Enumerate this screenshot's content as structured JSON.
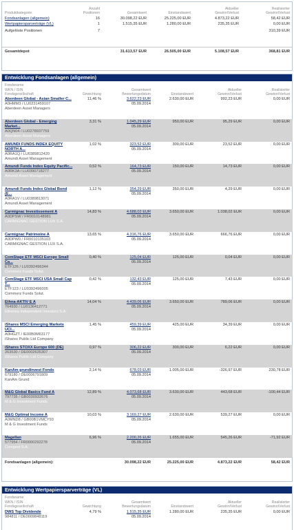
{
  "overview": {
    "headers": [
      "Produktkategorie",
      "Anzahl Positionen",
      "Gesamtwert",
      "Einstandswert",
      "Aktueller Gewinn/Verlust",
      "Realisierter Gewinn/Verlust"
    ],
    "headers_split": [
      [
        "",
        "Produktkategorie"
      ],
      [
        "Anzahl",
        "Positionen"
      ],
      [
        "",
        "Gesamtwert"
      ],
      [
        "",
        "Einstandswert"
      ],
      [
        "Aktueller",
        "Gewinn/Verlust"
      ],
      [
        "Realisierter",
        "Gewinn/Verlust"
      ]
    ],
    "rows": [
      {
        "name": "Fondsanlagen (allgemein)",
        "link": true,
        "count": "16",
        "total": "30.098,22 EUR",
        "cost": "25.225,00 EUR",
        "gain": "4.873,22 EUR",
        "realized": "58,42 EUR"
      },
      {
        "name": "Wertpapiersparverträge (VL)",
        "link": true,
        "count": "1",
        "total": "1.515,35 EUR",
        "cost": "1.280,00 EUR",
        "gain": "235,35 EUR",
        "realized": "0,00 EUR"
      },
      {
        "name": "Aufgelöste Positionen",
        "link": false,
        "count": "7",
        "total": "",
        "cost": "",
        "gain": "",
        "realized": "310,39 EUR"
      }
    ],
    "total": {
      "label": "Gesamtdepot",
      "total": "31.613,57 EUR",
      "cost": "26.505,00 EUR",
      "gain": "5.108,57 EUR",
      "realized": "368,81 EUR"
    }
  },
  "funds": {
    "title": "Entwicklung Fondsanlagen (allgemein)",
    "headers": {
      "name1": "Fondsname",
      "name2": "WKN / ISIN",
      "name3": "Fondsgesellschaft",
      "weight": "Gewichtung",
      "total1": "Gesamtwert",
      "total2": "Bewertungsdatum",
      "cost": "Einstandswert",
      "gain1": "Aktueller",
      "gain2": "Gewinn/Verlust",
      "real1": "Realisierter",
      "real2": "Gewinn/Verlust"
    },
    "rows": [
      {
        "name": "Aberdeen Global - Asian Smaller C...",
        "name2": "",
        "id": "A0HMM3 / LU0231459107",
        "mgr": "Aberdeen Asset Managers",
        "weight": "11,46 %",
        "total": "3.622,23 EUR",
        "date": "05.09.2014",
        "cost": "2.630,00 EUR",
        "gain": "992,23 EUR",
        "realized": "0,00 EUR",
        "gray": false
      },
      {
        "name": "Aberdeen Global - Emerging",
        "name2": "Market...",
        "id": "A0QN04 / LU0278937759",
        "mgr": "Aberdeen Asset Managers",
        "weight": "3,31 %",
        "total": "1.045,29 EUR",
        "date": "05.09.2014",
        "cost": "950,00 EUR",
        "gain": "95,29 EUR",
        "realized": "0,00 EUR",
        "gray": true
      },
      {
        "name": "AMUNDI FUNDS INDEX EQUITY",
        "name2": "NORTH A...",
        "id": "A0RA1Q / LU0389812420",
        "mgr": "Amundi Asset Management",
        "weight": "1,02 %",
        "total": "323,52 EUR",
        "date": "05.09.2014",
        "cost": "300,00 EUR",
        "gain": "23,52 EUR",
        "realized": "0,00 EUR",
        "gray": false
      },
      {
        "name": "Amundi Funds Index Equity Pacific...",
        "name2": "",
        "id": "A0RK3A / LU0390718277",
        "mgr": "Amundi Asset Management",
        "weight": "0,52 %",
        "total": "164,73 EUR",
        "date": "05.09.2014",
        "cost": "150,00 EUR",
        "gain": "14,73 EUR",
        "realized": "0,00 EUR",
        "gray": true
      },
      {
        "name": "Amundi Funds Index Global Bond",
        "name2": "(E...",
        "id": "A0RA1V / LU0389813071",
        "mgr": "Amundi Asset Management",
        "weight": "1,12 %",
        "total": "354,29 EUR",
        "date": "05.09.2014",
        "cost": "350,00 EUR",
        "gain": "4,29 EUR",
        "realized": "0,00 EUR",
        "gray": false
      },
      {
        "name": "Carmignac Investissement A",
        "name2": "",
        "id": "A0DPSW / FR0010148981",
        "mgr": "CARMIGNAC GESTION LUX S.A.",
        "weight": "14,83 %",
        "total": "4.688,02 EUR",
        "date": "05.09.2014",
        "cost": "3.650,00 EUR",
        "gain": "1.038,02 EUR",
        "realized": "0,00 EUR",
        "gray": true
      },
      {
        "name": "Carmignac Patrimoine A",
        "name2": "",
        "id": "A0DPW0 / FR0010135103",
        "mgr": "CARMIGNAC GESTION LUX S.A.",
        "weight": "13,65 %",
        "total": "4.316,76 EUR",
        "date": "05.09.2014",
        "cost": "3.650,00 EUR",
        "gain": "666,76 EUR",
        "realized": "0,00 EUR",
        "gray": false
      },
      {
        "name": "ComStage ETF MSCI Europe Small",
        "name2": "Ca...",
        "id": "ETF126 / LU0392496344",
        "mgr": "Commerz Funds Solut.",
        "weight": "0,40 %",
        "total": "125,04 EUR",
        "date": "05.09.2014",
        "cost": "125,00 EUR",
        "gain": "0,04 EUR",
        "realized": "0,00 EUR",
        "gray": true
      },
      {
        "name": "ComStage ETF MSCI USA Small Cap",
        "name2": "T...",
        "id": "ETF123 / LU0392496005",
        "mgr": "Commerz Funds Solut.",
        "weight": "0,42 %",
        "total": "132,43 EUR",
        "date": "05.09.2014",
        "cost": "125,00 EUR",
        "gain": "7,43 EUR",
        "realized": "0,00 EUR",
        "gray": false
      },
      {
        "name": "Ethna-AKTIV E A",
        "name2": "",
        "id": "764930 / LU0136412771",
        "mgr": "Ethenea Independent Investors S.A.",
        "weight": "14,04 %",
        "total": "4.439,06 EUR",
        "date": "05.09.2014",
        "cost": "3.650,00 EUR",
        "gain": "789,06 EUR",
        "realized": "0,00 EUR",
        "gray": true
      },
      {
        "name": "iShares MSCI Emerging Markets",
        "name2": "UCI...",
        "id": "A0HGZT / IE00B0M63177",
        "mgr": "iShares Public Ltd Company",
        "weight": "1,45 %",
        "total": "459,39 EUR",
        "date": "05.09.2014",
        "cost": "425,00 EUR",
        "gain": "34,39 EUR",
        "realized": "0,00 EUR",
        "gray": false
      },
      {
        "name": "iShares STOXX Europe 600 (DE)",
        "name2": "",
        "id": "263530 / DE0002635307",
        "mgr": "iShares Public Ltd Company",
        "weight": "0,97 %",
        "total": "306,22 EUR",
        "date": "05.09.2014",
        "cost": "300,00 EUR",
        "gain": "6,22 EUR",
        "realized": "0,00 EUR",
        "gray": true
      },
      {
        "name": "KanAm grundinvest Fonds",
        "name2": "",
        "id": "679180 / DE0006791809",
        "mgr": "KanAm Grund",
        "weight": "2,14 %",
        "total": "678,03 EUR",
        "date": "05.09.2014",
        "cost": "1.005,00 EUR",
        "gain": "-326,97 EUR",
        "realized": "230,78 EUR",
        "gray": false
      },
      {
        "name": "M&G Global Basics Fund A",
        "name2": "",
        "id": "797735 / GB0030932676",
        "mgr": "M & G Investment Funds",
        "weight": "12,89 %",
        "total": "4.073,68 EUR",
        "date": "05.09.2014",
        "cost": "3.630,00 EUR",
        "gain": "443,68 EUR",
        "realized": "-100,44 EUR",
        "gray": true
      },
      {
        "name": "M&G Optimal Income A",
        "name2": "",
        "id": "A0MND8 / GB00B1VMCY93",
        "mgr": "M & G Investment Funds",
        "weight": "10,03 %",
        "total": "3.169,27 EUR",
        "date": "05.09.2014",
        "cost": "2.630,00 EUR",
        "gain": "539,27 EUR",
        "realized": "0,00 EUR",
        "gray": false
      },
      {
        "name": "Magellan",
        "name2": "",
        "id": "577954 / FR0000292278",
        "mgr": "Comgest S.A.",
        "weight": "6,96 %",
        "total": "2.200,26 EUR",
        "date": "05.09.2014",
        "cost": "1.655,00 EUR",
        "gain": "545,26 EUR",
        "realized": "-71,92 EUR",
        "gray": true
      }
    ],
    "sum": {
      "label": "Fondsanlagen (allgemein):",
      "total": "30.098,22 EUR",
      "cost": "25.225,00 EUR",
      "gain": "4.873,22 EUR",
      "realized": "58,42 EUR"
    }
  },
  "vl": {
    "title": "Entwicklung Wertpapiersparverträge (VL)",
    "rows": [
      {
        "name": "DWS Top Dividende",
        "id": "984811 / DE0009848119",
        "weight": "4,79 %",
        "total": "1.515,35 EUR",
        "date": "05.09.2014",
        "cost": "1.280,00 EUR",
        "gain": "235,35 EUR",
        "realized": "0,00 EUR"
      }
    ]
  }
}
